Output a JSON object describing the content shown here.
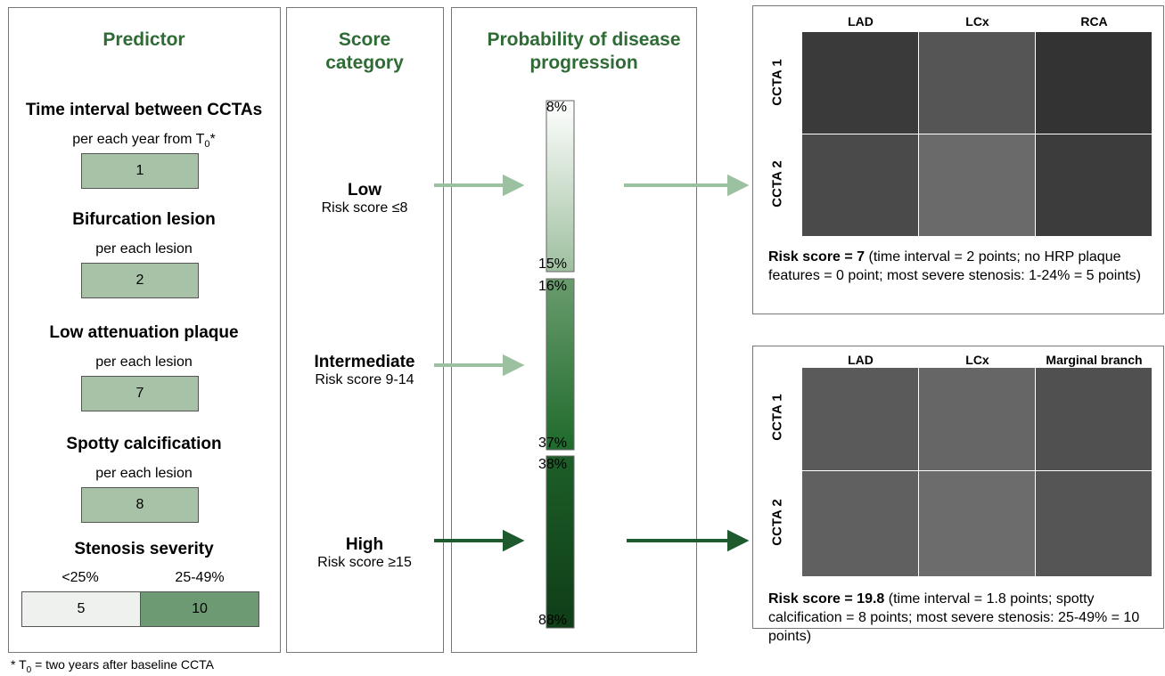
{
  "predictor": {
    "title": "Predictor",
    "items": [
      {
        "name": "Time interval between CCTAs",
        "unit": "per each year from T",
        "unit_sub": "0",
        "unit_mark": "*",
        "points": 1
      },
      {
        "name": "Bifurcation lesion",
        "unit": "per each lesion",
        "points": 2
      },
      {
        "name": "Low attenuation plaque",
        "unit": "per each lesion",
        "points": 7
      },
      {
        "name": "Spotty calcification",
        "unit": "per each lesion",
        "points": 8
      }
    ],
    "stenosis": {
      "name": "Stenosis severity",
      "levels": [
        {
          "label": "<25%",
          "points": 5
        },
        {
          "label": "25-49%",
          "points": 10
        }
      ]
    }
  },
  "score": {
    "title": "Score category",
    "categories": [
      {
        "name": "Low",
        "range": "Risk score ≤8"
      },
      {
        "name": "Intermediate",
        "range": "Risk score 9-14"
      },
      {
        "name": "High",
        "range": "Risk score ≥15"
      }
    ]
  },
  "probability": {
    "title": "Probability of disease progression",
    "bands": [
      {
        "top": "8%",
        "bottom": "15%"
      },
      {
        "top": "16%",
        "bottom": "37%"
      },
      {
        "top": "38%",
        "bottom": "88%"
      }
    ]
  },
  "examples": [
    {
      "columns": [
        "LAD",
        "LCx",
        "RCA"
      ],
      "rows": [
        "CCTA 1",
        "CCTA 2"
      ],
      "risk": "Risk score = 7",
      "detail": "(time interval = 2 points; no HRP plaque features = 0 point; most severe stenosis: 1-24% = 5 points)"
    },
    {
      "columns": [
        "LAD",
        "LCx",
        "Marginal branch"
      ],
      "rows": [
        "CCTA 1",
        "CCTA 2"
      ],
      "risk": "Risk score = 19.8",
      "detail": "(time interval = 1.8 points; spotty calcification = 8 points; most severe stenosis: 25-49% = 10 points)"
    }
  ],
  "footnote": {
    "mark": "* T",
    "sub": "0",
    "text": " = two years after baseline CCTA"
  }
}
